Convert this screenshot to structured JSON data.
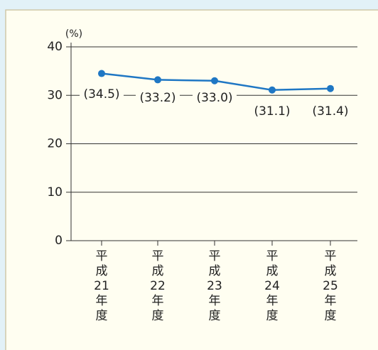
{
  "chart_data": {
    "type": "line",
    "y_unit": "(%)",
    "categories": [
      "平成21年度",
      "平成22年度",
      "平成23年度",
      "平成24年度",
      "平成25年度"
    ],
    "series": [
      {
        "name": "",
        "color": "#1f77c4",
        "values": [
          34.5,
          33.2,
          33.0,
          31.1,
          31.4
        ],
        "value_labels": [
          "(34.5)",
          "(33.2)",
          "(33.0)",
          "(31.1)",
          "(31.4)"
        ]
      }
    ],
    "ylim": [
      0,
      40
    ],
    "yticks": [
      0,
      10,
      20,
      30,
      40
    ],
    "grid": true
  }
}
